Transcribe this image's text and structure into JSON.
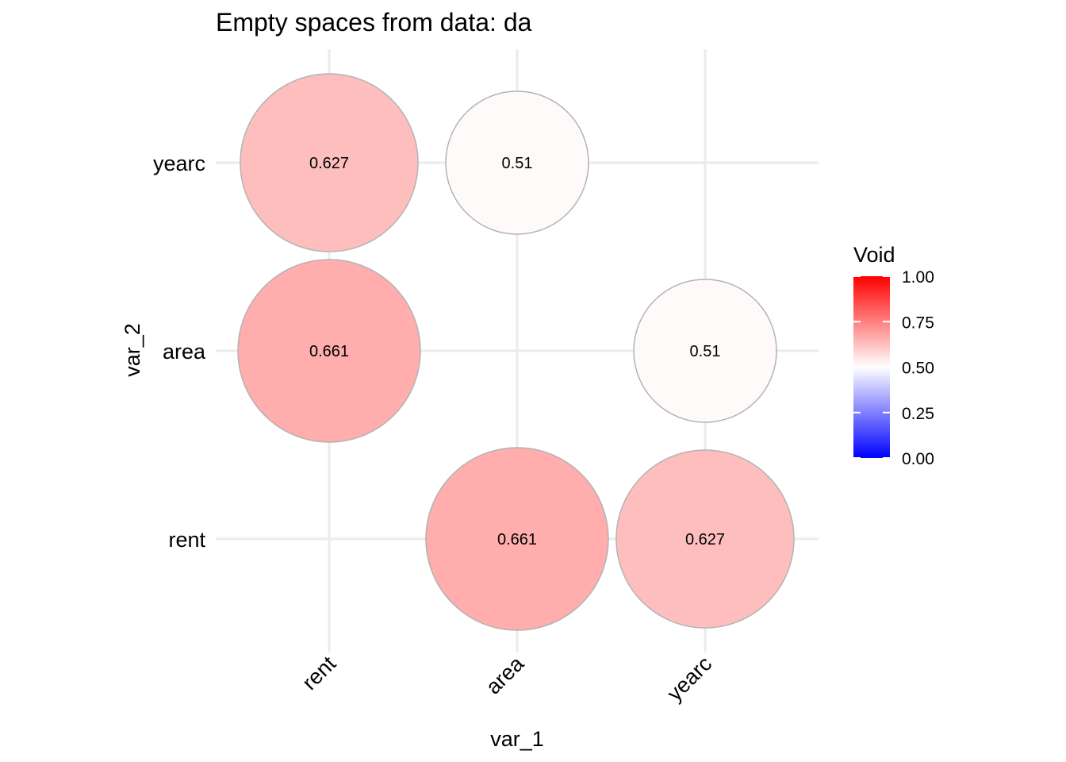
{
  "chart_data": {
    "type": "bubble-heatmap",
    "title": "Empty spaces from data: da",
    "xlabel": "var_1",
    "ylabel": "var_2",
    "x_categories": [
      "rent",
      "area",
      "yearc"
    ],
    "y_categories": [
      "rent",
      "area",
      "yearc"
    ],
    "cells": [
      {
        "x": "rent",
        "y": "yearc",
        "value": 0.627,
        "label": "0.627"
      },
      {
        "x": "area",
        "y": "yearc",
        "value": 0.51,
        "label": "0.51"
      },
      {
        "x": "rent",
        "y": "area",
        "value": 0.661,
        "label": "0.661"
      },
      {
        "x": "yearc",
        "y": "area",
        "value": 0.51,
        "label": "0.51"
      },
      {
        "x": "area",
        "y": "rent",
        "value": 0.661,
        "label": "0.661"
      },
      {
        "x": "yearc",
        "y": "rent",
        "value": 0.627,
        "label": "0.627"
      }
    ],
    "legend": {
      "title": "Void",
      "position": "right",
      "range": [
        0,
        1
      ],
      "ticks": [
        1.0,
        0.75,
        0.5,
        0.25,
        0.0
      ],
      "tick_labels": [
        "1.00",
        "0.75",
        "0.50",
        "0.25",
        "0.00"
      ],
      "colors": {
        "low": "#0000ff",
        "mid": "#ffffff",
        "high": "#ff0000"
      }
    },
    "grid": true
  }
}
